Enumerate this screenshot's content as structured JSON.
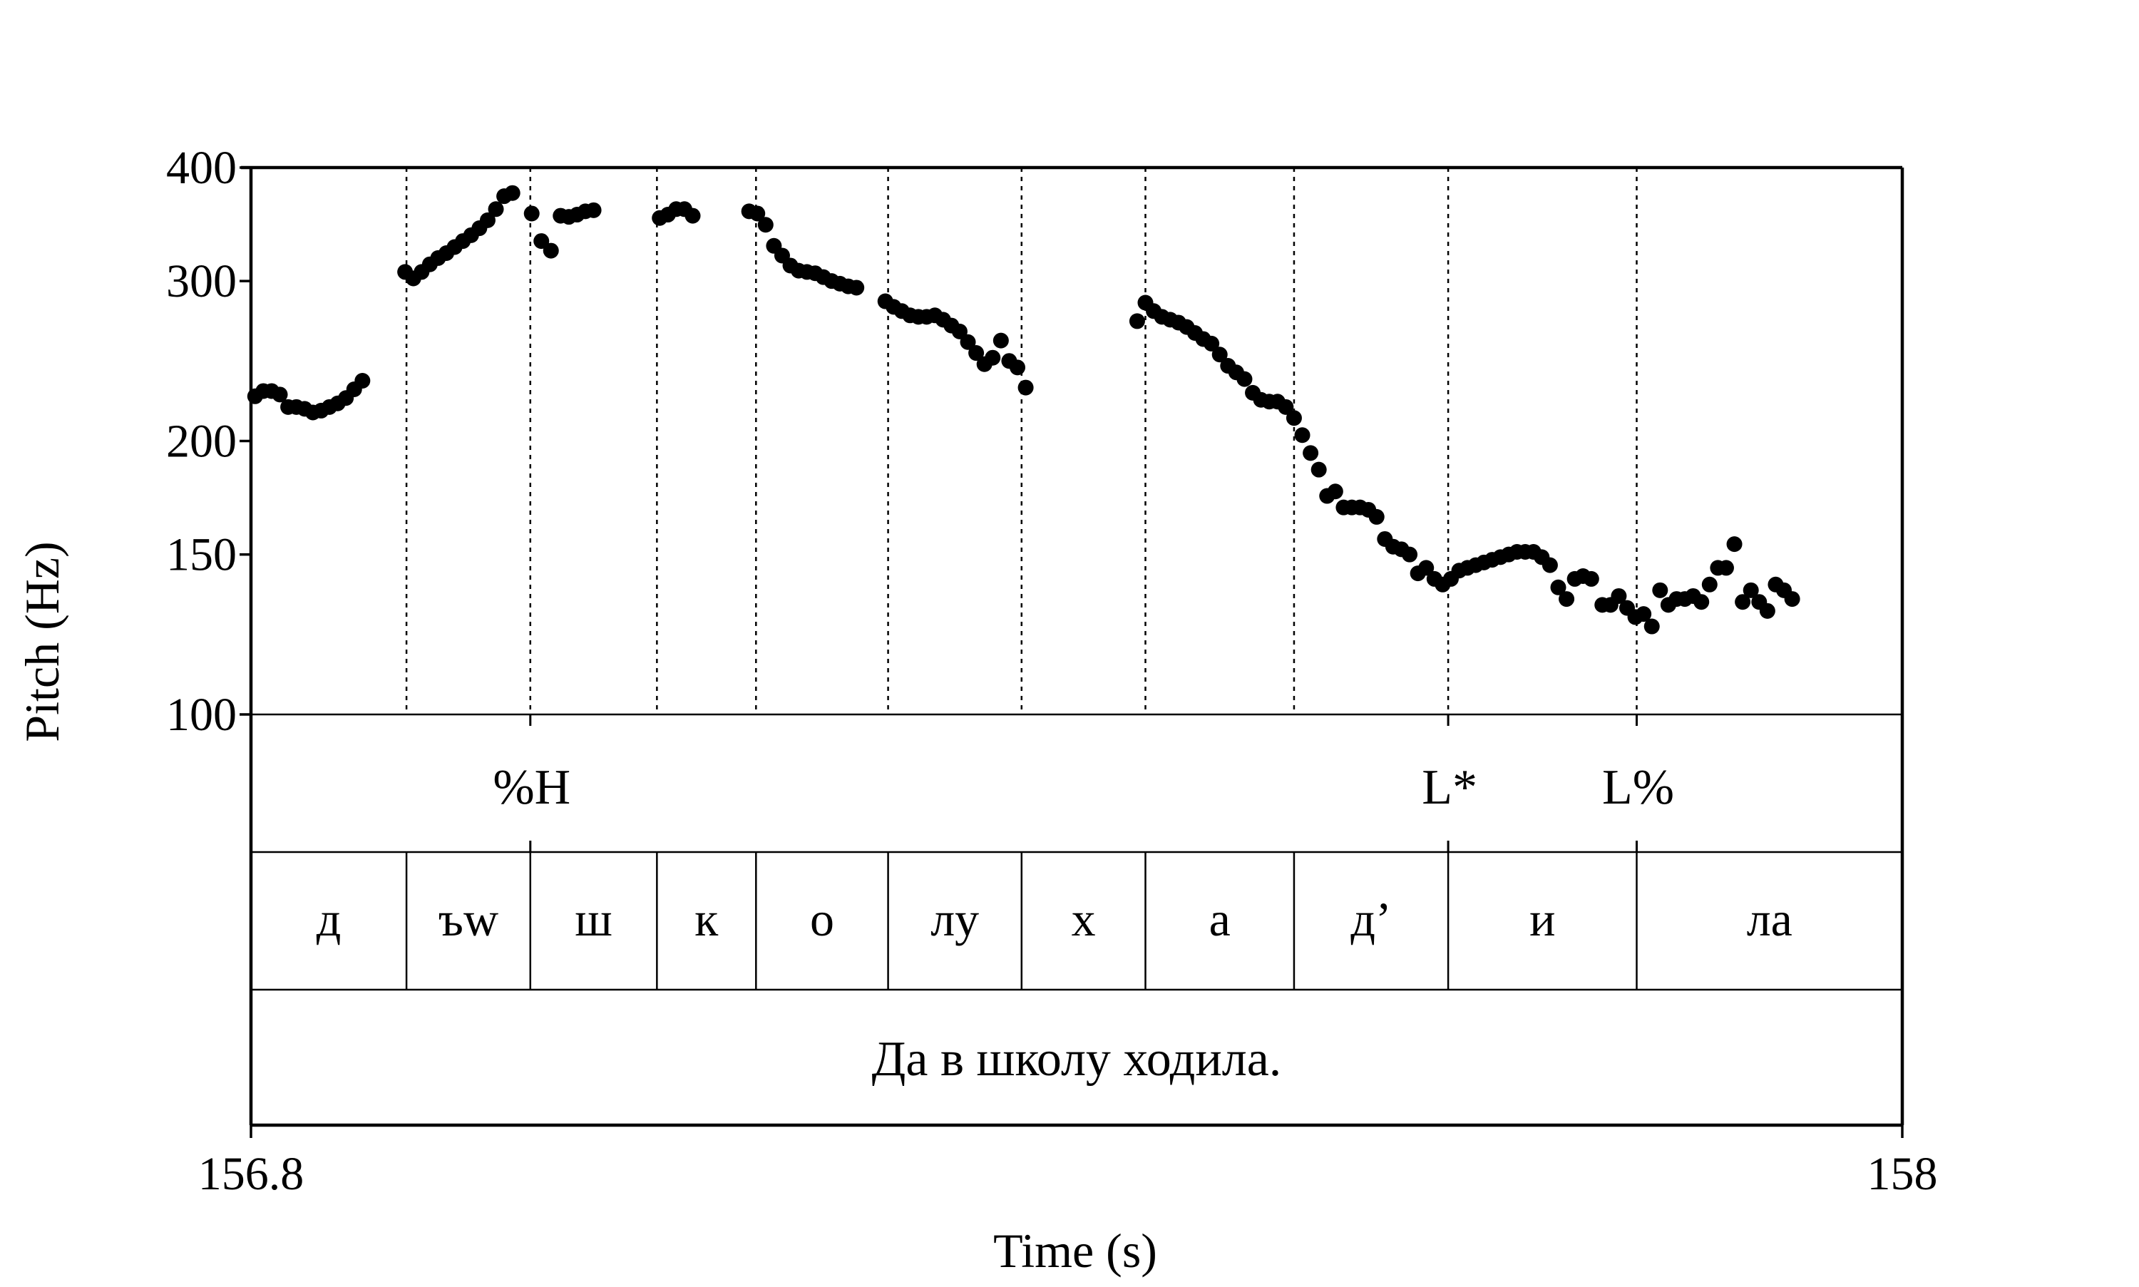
{
  "chart_data": {
    "type": "scatter",
    "xlabel": "Time (s)",
    "ylabel": "Pitch (Hz)",
    "xlim": [
      156.8,
      158
    ],
    "ylim": [
      100,
      400
    ],
    "yscale": "log",
    "x_ticks": [
      {
        "value": 156.8,
        "label": "156.8"
      },
      {
        "value": 158,
        "label": "158"
      }
    ],
    "y_ticks": [
      {
        "value": 100,
        "label": "100"
      },
      {
        "value": 150,
        "label": "150"
      },
      {
        "value": 200,
        "label": "200"
      },
      {
        "value": 300,
        "label": "300"
      },
      {
        "value": 400,
        "label": "400"
      }
    ],
    "boundaries": [
      156.913,
      157.003,
      157.095,
      157.167,
      157.263,
      157.36,
      157.45,
      157.558,
      157.67,
      157.807
    ],
    "tones": [
      {
        "label": "%H",
        "time": 157.003
      },
      {
        "label": "L*",
        "time": 157.67
      },
      {
        "label": "L%",
        "time": 157.807
      }
    ],
    "segments": [
      {
        "label": "д",
        "start": 156.8,
        "end": 156.913
      },
      {
        "label": "ъw",
        "start": 156.913,
        "end": 157.003
      },
      {
        "label": "ш",
        "start": 157.003,
        "end": 157.095
      },
      {
        "label": "к",
        "start": 157.095,
        "end": 157.167
      },
      {
        "label": "о",
        "start": 157.167,
        "end": 157.263
      },
      {
        "label": "лу",
        "start": 157.263,
        "end": 157.36
      },
      {
        "label": "х",
        "start": 157.36,
        "end": 157.45
      },
      {
        "label": "а",
        "start": 157.45,
        "end": 157.558
      },
      {
        "label": "д’",
        "start": 157.558,
        "end": 157.67
      },
      {
        "label": "и",
        "start": 157.67,
        "end": 157.807
      },
      {
        "label": "ла",
        "start": 157.807,
        "end": 158
      }
    ],
    "sentence": "Да в школу ходила.",
    "points": [
      [
        156.803,
        224
      ],
      [
        156.809,
        227
      ],
      [
        156.815,
        227
      ],
      [
        156.821,
        225
      ],
      [
        156.827,
        218
      ],
      [
        156.833,
        218
      ],
      [
        156.839,
        217
      ],
      [
        156.845,
        215
      ],
      [
        156.851,
        216
      ],
      [
        156.857,
        218
      ],
      [
        156.863,
        220
      ],
      [
        156.869,
        223
      ],
      [
        156.875,
        228
      ],
      [
        156.881,
        233
      ],
      [
        156.912,
        307
      ],
      [
        156.918,
        302
      ],
      [
        156.924,
        307
      ],
      [
        156.93,
        313
      ],
      [
        156.936,
        318
      ],
      [
        156.942,
        322
      ],
      [
        156.948,
        327
      ],
      [
        156.954,
        332
      ],
      [
        156.96,
        337
      ],
      [
        156.966,
        343
      ],
      [
        156.972,
        350
      ],
      [
        156.978,
        360
      ],
      [
        156.984,
        372
      ],
      [
        156.99,
        375
      ],
      [
        157.004,
        356
      ],
      [
        157.011,
        332
      ],
      [
        157.018,
        324
      ],
      [
        157.025,
        354
      ],
      [
        157.031,
        353
      ],
      [
        157.037,
        355
      ],
      [
        157.043,
        358
      ],
      [
        157.049,
        359
      ],
      [
        157.097,
        352
      ],
      [
        157.103,
        355
      ],
      [
        157.109,
        360
      ],
      [
        157.115,
        360
      ],
      [
        157.121,
        354
      ],
      [
        157.162,
        358
      ],
      [
        157.168,
        356
      ],
      [
        157.174,
        346
      ],
      [
        157.18,
        328
      ],
      [
        157.186,
        320
      ],
      [
        157.192,
        312
      ],
      [
        157.198,
        308
      ],
      [
        157.204,
        307
      ],
      [
        157.21,
        306
      ],
      [
        157.216,
        303
      ],
      [
        157.222,
        300
      ],
      [
        157.228,
        298
      ],
      [
        157.234,
        296
      ],
      [
        157.24,
        295
      ],
      [
        157.261,
        285
      ],
      [
        157.267,
        281
      ],
      [
        157.273,
        278
      ],
      [
        157.279,
        275
      ],
      [
        157.285,
        274
      ],
      [
        157.291,
        274
      ],
      [
        157.297,
        275
      ],
      [
        157.303,
        272
      ],
      [
        157.309,
        268
      ],
      [
        157.315,
        264
      ],
      [
        157.321,
        257
      ],
      [
        157.327,
        250
      ],
      [
        157.333,
        243
      ],
      [
        157.339,
        247
      ],
      [
        157.345,
        258
      ],
      [
        157.351,
        245
      ],
      [
        157.357,
        241
      ],
      [
        157.363,
        229
      ],
      [
        157.444,
        271
      ],
      [
        157.45,
        284
      ],
      [
        157.456,
        278
      ],
      [
        157.462,
        274
      ],
      [
        157.468,
        272
      ],
      [
        157.474,
        270
      ],
      [
        157.48,
        267
      ],
      [
        157.486,
        263
      ],
      [
        157.492,
        259
      ],
      [
        157.498,
        256
      ],
      [
        157.504,
        249
      ],
      [
        157.51,
        242
      ],
      [
        157.516,
        238
      ],
      [
        157.522,
        234
      ],
      [
        157.528,
        226
      ],
      [
        157.534,
        222
      ],
      [
        157.54,
        221
      ],
      [
        157.546,
        221
      ],
      [
        157.552,
        218
      ],
      [
        157.558,
        212
      ],
      [
        157.564,
        203
      ],
      [
        157.57,
        194
      ],
      [
        157.576,
        186
      ],
      [
        157.582,
        174
      ],
      [
        157.588,
        176
      ],
      [
        157.594,
        169
      ],
      [
        157.6,
        169
      ],
      [
        157.606,
        169
      ],
      [
        157.612,
        168
      ],
      [
        157.618,
        165
      ],
      [
        157.624,
        156
      ],
      [
        157.63,
        153
      ],
      [
        157.636,
        152
      ],
      [
        157.642,
        150
      ],
      [
        157.648,
        143
      ],
      [
        157.654,
        145
      ],
      [
        157.66,
        141
      ],
      [
        157.666,
        139
      ],
      [
        157.672,
        141
      ],
      [
        157.678,
        144
      ],
      [
        157.684,
        145
      ],
      [
        157.69,
        146
      ],
      [
        157.696,
        147
      ],
      [
        157.702,
        148
      ],
      [
        157.708,
        149
      ],
      [
        157.714,
        150
      ],
      [
        157.72,
        151
      ],
      [
        157.726,
        151
      ],
      [
        157.732,
        151
      ],
      [
        157.738,
        149
      ],
      [
        157.744,
        146
      ],
      [
        157.75,
        138
      ],
      [
        157.756,
        134
      ],
      [
        157.762,
        141
      ],
      [
        157.768,
        142
      ],
      [
        157.774,
        141
      ],
      [
        157.782,
        132
      ],
      [
        157.788,
        132
      ],
      [
        157.794,
        135
      ],
      [
        157.8,
        131
      ],
      [
        157.806,
        128
      ],
      [
        157.812,
        129
      ],
      [
        157.818,
        125
      ],
      [
        157.824,
        137
      ],
      [
        157.83,
        132
      ],
      [
        157.836,
        134
      ],
      [
        157.842,
        134
      ],
      [
        157.848,
        135
      ],
      [
        157.854,
        133
      ],
      [
        157.86,
        139
      ],
      [
        157.866,
        145
      ],
      [
        157.872,
        145
      ],
      [
        157.878,
        154
      ],
      [
        157.884,
        133
      ],
      [
        157.89,
        137
      ],
      [
        157.896,
        133
      ],
      [
        157.902,
        130
      ],
      [
        157.908,
        139
      ],
      [
        157.914,
        137
      ],
      [
        157.92,
        134
      ]
    ]
  }
}
